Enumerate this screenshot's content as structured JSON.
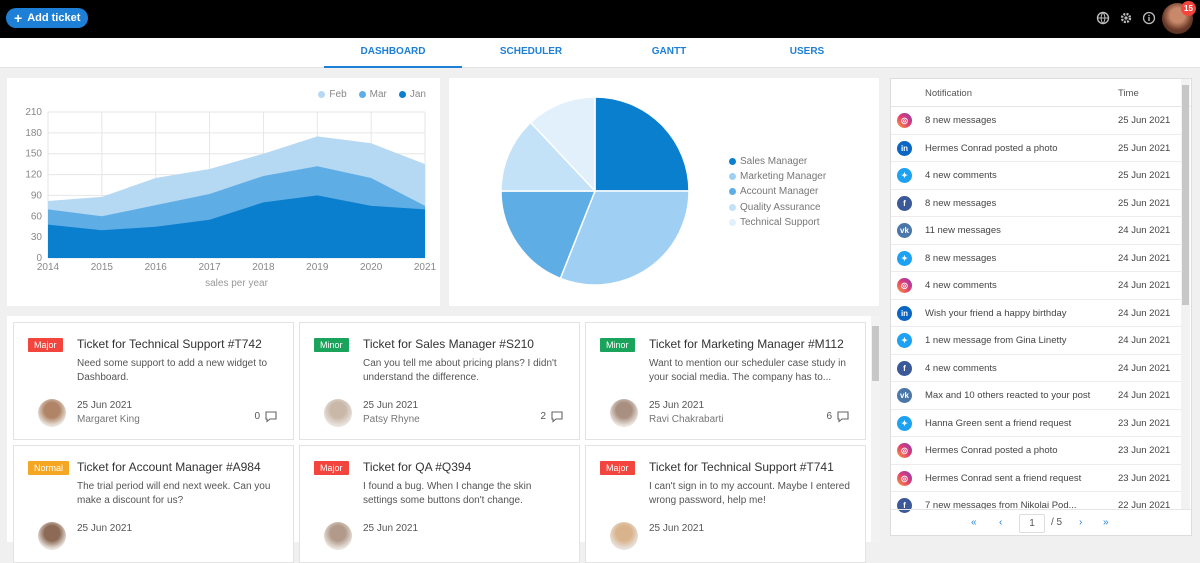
{
  "header": {
    "add_ticket": "Add ticket",
    "badge_count": "15"
  },
  "tabs": [
    {
      "label": "DASHBOARD"
    },
    {
      "label": "SCHEDULER"
    },
    {
      "label": "GANTT"
    },
    {
      "label": "USERS"
    }
  ],
  "chart_data": [
    {
      "type": "area",
      "x": [
        "2014",
        "2015",
        "2016",
        "2017",
        "2018",
        "2019",
        "2020",
        "2021"
      ],
      "xlabel": "sales per year",
      "ylim": [
        0,
        210
      ],
      "yticks": [
        "0",
        "30",
        "60",
        "90",
        "120",
        "150",
        "180",
        "210"
      ],
      "grid": true,
      "legend": "top-right",
      "series": [
        {
          "name": "Feb",
          "color": "#b5d8f3",
          "values": [
            82,
            88,
            115,
            128,
            150,
            175,
            165,
            135
          ]
        },
        {
          "name": "Mar",
          "color": "#5fade5",
          "values": [
            70,
            60,
            76,
            92,
            118,
            132,
            115,
            75
          ]
        },
        {
          "name": "Jan",
          "color": "#0a7fce",
          "values": [
            48,
            40,
            45,
            55,
            80,
            90,
            75,
            70
          ]
        }
      ]
    },
    {
      "type": "pie",
      "legend": "right",
      "slices": [
        {
          "name": "Sales Manager",
          "value": 25,
          "color": "#0a7fce"
        },
        {
          "name": "Marketing Manager",
          "value": 31,
          "color": "#9fcff2"
        },
        {
          "name": "Account Manager",
          "value": 19,
          "color": "#5fade5"
        },
        {
          "name": "Quality Assurance",
          "value": 13,
          "color": "#c4e2f7"
        },
        {
          "name": "Technical Support",
          "value": 12,
          "color": "#e1f0fb"
        }
      ]
    }
  ],
  "notifications": {
    "col_notification": "Notification",
    "col_time": "Time",
    "rows": [
      {
        "icon": "instagram",
        "text": "8 new messages",
        "time": "25 Jun 2021"
      },
      {
        "icon": "linkedin",
        "text": "Hermes Conrad posted a photo",
        "time": "25 Jun 2021"
      },
      {
        "icon": "twitter",
        "text": "4 new comments",
        "time": "25 Jun 2021"
      },
      {
        "icon": "facebook",
        "text": "8 new messages",
        "time": "25 Jun 2021"
      },
      {
        "icon": "vk",
        "text": "11 new messages",
        "time": "24 Jun 2021"
      },
      {
        "icon": "twitter",
        "text": "8 new messages",
        "time": "24 Jun 2021"
      },
      {
        "icon": "instagram",
        "text": "4 new comments",
        "time": "24 Jun 2021"
      },
      {
        "icon": "linkedin",
        "text": "Wish your friend a happy birthday",
        "time": "24 Jun 2021"
      },
      {
        "icon": "twitter",
        "text": "1 new message from Gina Linetty",
        "time": "24 Jun 2021"
      },
      {
        "icon": "facebook",
        "text": "4 new comments",
        "time": "24 Jun 2021"
      },
      {
        "icon": "vk",
        "text": "Max and 10 others reacted to your post",
        "time": "24 Jun 2021"
      },
      {
        "icon": "twitter",
        "text": "Hanna Green sent a friend request",
        "time": "23 Jun 2021"
      },
      {
        "icon": "instagram",
        "text": "Hermes Conrad posted a photo",
        "time": "23 Jun 2021"
      },
      {
        "icon": "instagram",
        "text": "Hermes Conrad sent a friend request",
        "time": "23 Jun 2021"
      },
      {
        "icon": "facebook",
        "text": "7 new messages from Nikolai Pod...",
        "time": "22 Jun 2021"
      }
    ],
    "pager": {
      "first": "«",
      "prev": "‹",
      "current": "1",
      "total": "/ 5",
      "next": "›",
      "last": "»"
    }
  },
  "tickets": [
    {
      "tag": "Major",
      "tag_color": "#f2453d",
      "title": "Ticket for Technical Support #T742",
      "desc": "Need some support to add a new widget to Dashboard.",
      "date": "25 Jun 2021",
      "name": "Margaret King",
      "comments": "0"
    },
    {
      "tag": "Minor",
      "tag_color": "#1aa35a",
      "title": "Ticket for Sales Manager #S210",
      "desc": "Can you tell me about pricing plans? I didn't understand the difference.",
      "date": "25 Jun 2021",
      "name": "Patsy Rhyne",
      "comments": "2"
    },
    {
      "tag": "Minor",
      "tag_color": "#1aa35a",
      "title": "Ticket for Marketing Manager #M112",
      "desc": "Want to mention our scheduler case study in your social media. The company has to...",
      "date": "25 Jun 2021",
      "name": "Ravi Chakrabarti",
      "comments": "6"
    },
    {
      "tag": "Normal",
      "tag_color": "#f5a623",
      "title": "Ticket for Account Manager #A984",
      "desc": "The trial period will end next week. Can you make a discount for us?",
      "date": "25 Jun 2021",
      "name": "",
      "comments": ""
    },
    {
      "tag": "Major",
      "tag_color": "#f2453d",
      "title": "Ticket for QA #Q394",
      "desc": "I found a bug. When I change the skin settings some buttons don't change.",
      "date": "25 Jun 2021",
      "name": "",
      "comments": ""
    },
    {
      "tag": "Major",
      "tag_color": "#f2453d",
      "title": "Ticket for Technical Support #T741",
      "desc": "I can't sign in to my account. Maybe I entered wrong password, help me!",
      "date": "25 Jun 2021",
      "name": "",
      "comments": ""
    }
  ]
}
